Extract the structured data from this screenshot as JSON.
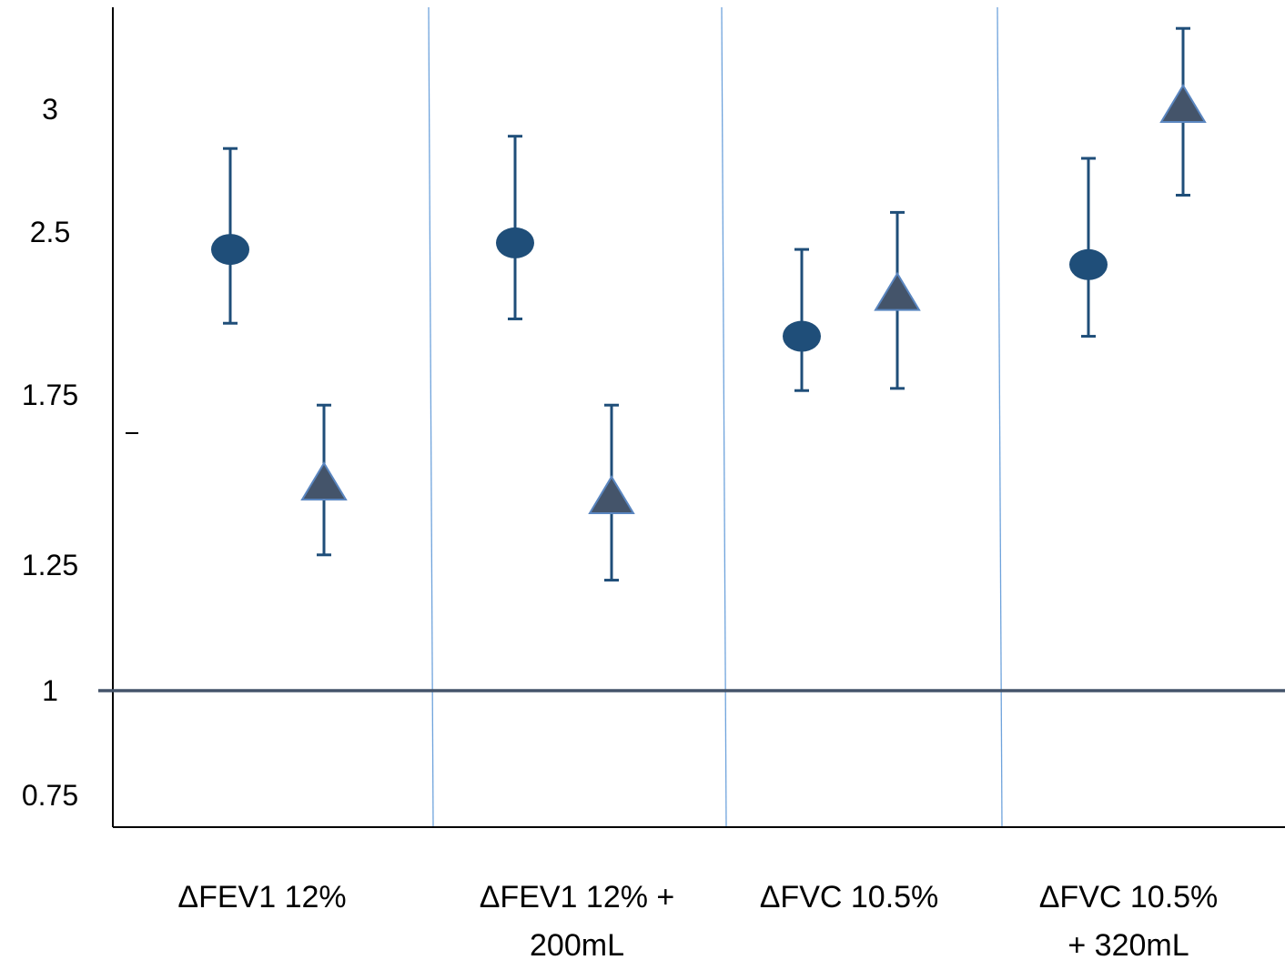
{
  "chart_data": {
    "type": "scatter",
    "title": "",
    "xlabel": "",
    "ylabel": "",
    "ylim": [
      0.75,
      3.1
    ],
    "y_ticks": [
      {
        "label": "0.75",
        "value": 0.75
      },
      {
        "label": "1",
        "value": 1.0
      },
      {
        "label": "1.25",
        "value": 1.25
      },
      {
        "label": "1.75",
        "value": 1.75
      },
      {
        "label": "2.5",
        "value": 2.5
      },
      {
        "label": "3",
        "value": 3.0
      }
    ],
    "reference_line": 1,
    "categories": [
      {
        "lines": [
          "ΔFEV1 12%"
        ]
      },
      {
        "lines": [
          "ΔFEV1 12% +",
          "200mL"
        ]
      },
      {
        "lines": [
          "ΔFVC 10.5%"
        ]
      },
      {
        "lines": [
          "ΔFVC 10.5%",
          "+ 320mL"
        ]
      }
    ],
    "series": [
      {
        "marker": "circle",
        "color": "#1f4e79",
        "points": [
          {
            "value": 2.42,
            "low": 2.08,
            "high": 2.84
          },
          {
            "value": 2.45,
            "low": 2.1,
            "high": 2.89
          },
          {
            "value": 2.02,
            "low": 1.77,
            "high": 2.42
          },
          {
            "value": 2.35,
            "low": 2.02,
            "high": 2.8
          }
        ]
      },
      {
        "marker": "triangle",
        "color": "#44546a",
        "points": [
          {
            "value": 1.48,
            "low": 1.28,
            "high": 1.72
          },
          {
            "value": 1.44,
            "low": 1.22,
            "high": 1.72
          },
          {
            "value": 2.2,
            "low": 1.78,
            "high": 2.58
          },
          {
            "value": 3.0,
            "low": 2.65,
            "high": 3.37
          }
        ]
      }
    ]
  }
}
